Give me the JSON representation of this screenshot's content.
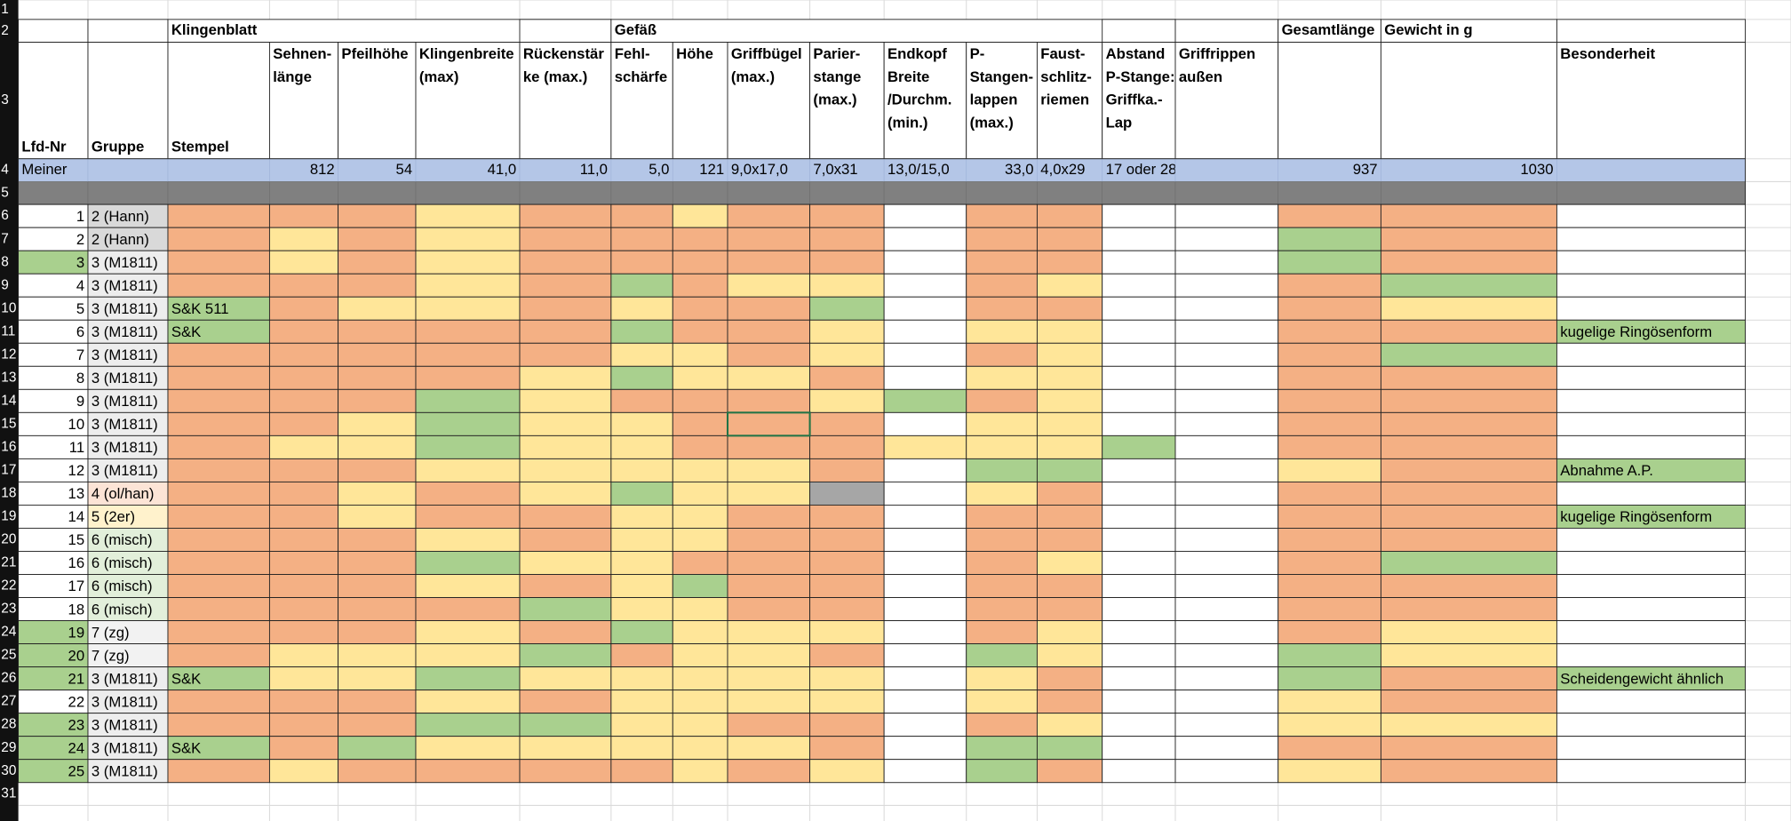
{
  "row_headers": [
    "1",
    "2",
    "3",
    "4",
    "5",
    "6",
    "7",
    "8",
    "9",
    "10",
    "11",
    "12",
    "13",
    "14",
    "15",
    "16",
    "17",
    "18",
    "19",
    "20",
    "21",
    "22",
    "23",
    "24",
    "25",
    "26",
    "27",
    "28",
    "29",
    "30",
    "31"
  ],
  "palette": {
    "w": "#ffffff",
    "o": "#f4b084",
    "y": "#ffe699",
    "g": "#a9d08e",
    "d": "#a6a6a6",
    "h": "#d9d9d9",
    "m": "#ededed",
    "p": "#fce4d6",
    "l": "#fff2cc",
    "n": "#e2efda",
    "z": "#f2f2f2"
  },
  "group_header": [
    null,
    null,
    "Klingenblatt",
    null,
    null,
    null,
    null,
    "Gefäß",
    null,
    null,
    null,
    null,
    null,
    null,
    null,
    null,
    "Gesamtlänge",
    "Gewicht in g",
    null
  ],
  "column_headers": [
    [
      "Lfd-Nr"
    ],
    [
      "Gruppe"
    ],
    [
      "Stempel"
    ],
    [
      "Sehnen-",
      "länge"
    ],
    [
      "Pfeilhöhe"
    ],
    [
      "Klingenbreite",
      "(max)"
    ],
    [
      "Rückenstär",
      "ke (max.)"
    ],
    [
      "Fehl-",
      "schärfe"
    ],
    [
      "Höhe"
    ],
    [
      "Griffbügel",
      "(max.)"
    ],
    [
      "Parier-",
      "stange",
      "(max.)"
    ],
    [
      "Endkopf",
      "Breite",
      "/Durchm.",
      "(min.)"
    ],
    [
      "P-",
      "Stangen-",
      "lappen",
      "(max.)"
    ],
    [
      "Faust-",
      "schlitz-",
      "riemen"
    ],
    [
      "Abstand",
      "P-Stange:",
      "Griffka.-",
      "Lap"
    ],
    [
      "Griffrippen",
      "außen"
    ],
    null,
    null,
    [
      "Besonderheit"
    ]
  ],
  "reference_row": [
    "Meiner",
    null,
    null,
    "812",
    "54",
    "41,0",
    "11,0",
    "5,0",
    "121",
    "9,0x17,0",
    "7,0x31",
    "13,0/15,0",
    "33,0",
    "4,0x29",
    "17 oder 28",
    null,
    "937",
    "1030",
    null
  ],
  "rows": [
    {
      "lfd": "1",
      "gruppe": "2 (Hann)",
      "fills": "whoooyooyoowoowwoow"
    },
    {
      "lfd": "2",
      "gruppe": "2 (Hann)",
      "fills": "whoyoyooooowoowwgow"
    },
    {
      "lfd": "3",
      "gruppe": "3 (M1811)",
      "fills": "gmoyoyooooowoowwgow"
    },
    {
      "lfd": "4",
      "gruppe": "3 (M1811)",
      "fills": "wmoooyogoyywoywwogw"
    },
    {
      "lfd": "5",
      "gruppe": "3 (M1811)",
      "stempel": "S&K 511",
      "fills": "wmgoyyoyoogwoowwoyw"
    },
    {
      "lfd": "6",
      "gruppe": "3 (M1811)",
      "stempel": "S&K",
      "besonderheit": "kugelige Ringösenform",
      "fills": "wmgoooogooywyywwoog"
    },
    {
      "lfd": "7",
      "gruppe": "3 (M1811)",
      "fills": "wmoooooyyoywoywwogw"
    },
    {
      "lfd": "8",
      "gruppe": "3 (M1811)",
      "fills": "wmooooygyyowyywwoow"
    },
    {
      "lfd": "9",
      "gruppe": "3 (M1811)",
      "fills": "wmooogyoooygoywwoow"
    },
    {
      "lfd": "10",
      "gruppe": "3 (M1811)",
      "fills": "wmooygyyooowyywwoow"
    },
    {
      "lfd": "11",
      "gruppe": "3 (M1811)",
      "fills": "wmoyygyyoooyyygwoow"
    },
    {
      "lfd": "12",
      "gruppe": "3 (M1811)",
      "besonderheit": "Abnahme A.P.",
      "fills": "wmoooyyyyyowggwwyog"
    },
    {
      "lfd": "13",
      "gruppe": "4 (ol/han)",
      "fills": "wpooyoygyydwyowwoow"
    },
    {
      "lfd": "14",
      "gruppe": "5 (2er)",
      "besonderheit": "kugelige Ringösenform",
      "fills": "wlooyooyyoowoowwoog"
    },
    {
      "lfd": "15",
      "gruppe": "6 (misch)",
      "fills": "wnoooyoyyoowoowwoow"
    },
    {
      "lfd": "16",
      "gruppe": "6 (misch)",
      "fills": "wnooogyyooowoywwogw"
    },
    {
      "lfd": "17",
      "gruppe": "6 (misch)",
      "fills": "wnoooyoygoowoowwoow"
    },
    {
      "lfd": "18",
      "gruppe": "6 (misch)",
      "fills": "wnoooogyyoowoowwoow"
    },
    {
      "lfd": "19",
      "gruppe": "7 (zg)",
      "fills": "gzoooyogyyywoywwoyw"
    },
    {
      "lfd": "20",
      "gruppe": "7 (zg)",
      "fills": "gzoyyygoyyowgywwgyw"
    },
    {
      "lfd": "21",
      "gruppe": "3 (M1811)",
      "stempel": "S&K",
      "besonderheit": "Scheidengewicht ähnlich",
      "fills": "gmgyygyyyyywyowwgog"
    },
    {
      "lfd": "22",
      "gruppe": "3 (M1811)",
      "fills": "wmoooyoyyyywyowwyow"
    },
    {
      "lfd": "23",
      "gruppe": "3 (M1811)",
      "fills": "gmoooggyyoowoywwyyw"
    },
    {
      "lfd": "24",
      "gruppe": "3 (M1811)",
      "stempel": "S&K",
      "fills": "gmgogyyyyyowggwwoow"
    },
    {
      "lfd": "25",
      "gruppe": "3 (M1811)",
      "fills": "gmoyooooyoywgowwyow"
    }
  ]
}
